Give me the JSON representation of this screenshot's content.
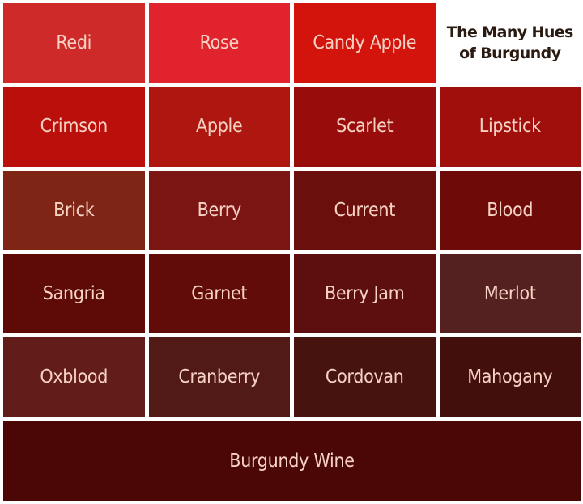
{
  "title": {
    "line1": "The Many Hues",
    "line2": "of Burgundy"
  },
  "swatches": [
    {
      "name": "Redi",
      "color": "#cf2a2a"
    },
    {
      "name": "Rose",
      "color": "#e0232d"
    },
    {
      "name": "Candy Apple",
      "color": "#d2140c"
    },
    {
      "name": "Crimson",
      "color": "#bb0f0c"
    },
    {
      "name": "Apple",
      "color": "#ad1710"
    },
    {
      "name": "Scarlet",
      "color": "#980d0b"
    },
    {
      "name": "Lipstick",
      "color": "#a00f0c"
    },
    {
      "name": "Brick",
      "color": "#7e2515"
    },
    {
      "name": "Berry",
      "color": "#7a1514"
    },
    {
      "name": "Current",
      "color": "#6a0f0c"
    },
    {
      "name": "Blood",
      "color": "#6e0a08"
    },
    {
      "name": "Sangria",
      "color": "#5e0b08"
    },
    {
      "name": "Garnet",
      "color": "#620c0a"
    },
    {
      "name": "Berry Jam",
      "color": "#5c0f0e"
    },
    {
      "name": "Merlot",
      "color": "#542020"
    },
    {
      "name": "Oxblood",
      "color": "#621c19"
    },
    {
      "name": "Cranberry",
      "color": "#521a17"
    },
    {
      "name": "Cordovan",
      "color": "#46130f"
    },
    {
      "name": "Mahogany",
      "color": "#430f0c"
    },
    {
      "name": "Burgundy Wine",
      "color": "#4a0706"
    }
  ]
}
